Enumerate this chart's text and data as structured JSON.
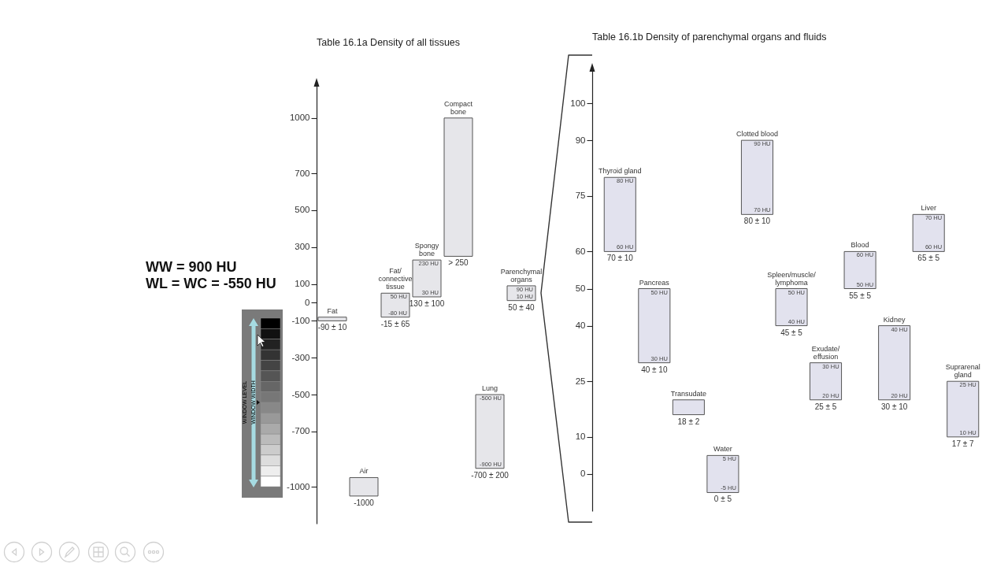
{
  "chart_data": [
    {
      "type": "bar",
      "title": "Table 16.1a Density of all tissues",
      "categories": [
        "Fat",
        "Air",
        "Fat/connective tissue",
        "Spongy bone",
        "Compact bone",
        "Lung",
        "Parenchymal organs"
      ],
      "base": [
        -100,
        -1050,
        -80,
        30,
        250,
        -900,
        10
      ],
      "values": [
        20,
        100,
        130,
        200,
        750,
        400,
        80
      ],
      "color": "#e6e6ea",
      "ylim": [
        -1200,
        1200
      ],
      "yticks": [
        -1000,
        -700,
        -500,
        -300,
        -100,
        0,
        100,
        300,
        500,
        700,
        1000
      ],
      "annotations": [
        "WW = 900 HU",
        "WL = WC = -550 HU",
        "WINDOW LEVEL",
        "WINDOW WIDTH",
        {
          "text": "50 HU",
          "x": "Fat/connective tissue",
          "y": 50
        },
        {
          "text": "-80 HU",
          "x": "Fat/connective tissue",
          "y": -80
        },
        {
          "text": "230 HU",
          "x": "Spongy bone",
          "y": 230
        },
        {
          "text": "30 HU",
          "x": "Spongy bone",
          "y": 30
        },
        {
          "text": "-500 HU",
          "x": "Lung",
          "y": -500
        },
        {
          "text": "-900 HU",
          "x": "Lung",
          "y": -900
        },
        {
          "text": "90 HU",
          "x": "Parenchymal organs",
          "y": 90
        },
        {
          "text": "10 HU",
          "x": "Parenchymal organs",
          "y": 10
        },
        {
          "text": "-90 ± 10",
          "x": "Fat",
          "y": -100
        },
        {
          "text": "-1000",
          "x": "Air",
          "y": -1050
        },
        {
          "text": "-15 ± 65",
          "x": "Fat/connective tissue",
          "y": -80
        },
        {
          "text": "130 ± 100",
          "x": "Spongy bone",
          "y": 30
        },
        {
          "text": "> 250",
          "x": "Compact bone",
          "y": 250
        },
        {
          "text": "-700 ± 200",
          "x": "Lung",
          "y": -900
        },
        {
          "text": "50 ± 40",
          "x": "Parenchymal organs",
          "y": 10
        }
      ]
    },
    {
      "type": "bar",
      "title": "Table 16.1b Density of parenchymal organs and fluids",
      "categories": [
        "Thyroid gland",
        "Pancreas",
        "Transudate",
        "Water",
        "Clotted blood",
        "Spleen/muscle/lymphoma",
        "Exudate/effusion",
        "Blood",
        "Kidney",
        "Liver",
        "Suprarenal gland"
      ],
      "base": [
        60,
        30,
        16,
        -5,
        70,
        40,
        20,
        50,
        20,
        60,
        10
      ],
      "values": [
        20,
        20,
        4,
        10,
        20,
        10,
        10,
        10,
        20,
        10,
        15
      ],
      "color": "#e2e2ee",
      "ylim": [
        -10,
        110
      ],
      "yticks": [
        0,
        10,
        25,
        40,
        50,
        60,
        75,
        90,
        100
      ],
      "annotations": [
        {
          "text": "80 HU",
          "x": "Thyroid gland",
          "y": 80
        },
        {
          "text": "60 HU",
          "x": "Thyroid gland",
          "y": 60
        },
        {
          "text": "50 HU",
          "x": "Pancreas",
          "y": 50
        },
        {
          "text": "30 HU",
          "x": "Pancreas",
          "y": 30
        },
        {
          "text": "5 HU",
          "x": "Water",
          "y": 5
        },
        {
          "text": "-5 HU",
          "x": "Water",
          "y": -5
        },
        {
          "text": "90 HU",
          "x": "Clotted blood",
          "y": 90
        },
        {
          "text": "70 HU",
          "x": "Clotted blood",
          "y": 70
        },
        {
          "text": "50 HU",
          "x": "Spleen/muscle/lymphoma",
          "y": 50
        },
        {
          "text": "40 HU",
          "x": "Spleen/muscle/lymphoma",
          "y": 40
        },
        {
          "text": "30 HU",
          "x": "Exudate/effusion",
          "y": 30
        },
        {
          "text": "20 HU",
          "x": "Exudate/effusion",
          "y": 20
        },
        {
          "text": "60 HU",
          "x": "Blood",
          "y": 60
        },
        {
          "text": "50 HU",
          "x": "Blood",
          "y": 50
        },
        {
          "text": "40 HU",
          "x": "Kidney",
          "y": 40
        },
        {
          "text": "20 HU",
          "x": "Kidney",
          "y": 20
        },
        {
          "text": "70 HU",
          "x": "Liver",
          "y": 70
        },
        {
          "text": "60 HU",
          "x": "Liver",
          "y": 60
        },
        {
          "text": "25 HU",
          "x": "Suprarenal gland",
          "y": 25
        },
        {
          "text": "10 HU",
          "x": "Suprarenal gland",
          "y": 10
        },
        {
          "text": "70 ± 10",
          "x": "Thyroid gland",
          "y": 60
        },
        {
          "text": "40 ± 10",
          "x": "Pancreas",
          "y": 30
        },
        {
          "text": "18 ± 2",
          "x": "Transudate",
          "y": 16
        },
        {
          "text": "0 ± 5",
          "x": "Water",
          "y": -5
        },
        {
          "text": "80 ± 10",
          "x": "Clotted blood",
          "y": 70
        },
        {
          "text": "45 ± 5",
          "x": "Spleen/muscle/lymphoma",
          "y": 40
        },
        {
          "text": "25 ± 5",
          "x": "Exudate/effusion",
          "y": 20
        },
        {
          "text": "55 ± 5",
          "x": "Blood",
          "y": 50
        },
        {
          "text": "30 ± 10",
          "x": "Kidney",
          "y": 20
        },
        {
          "text": "65 ± 5",
          "x": "Liver",
          "y": 60
        },
        {
          "text": "17 ± 7",
          "x": "Suprarenal gland",
          "y": 10
        }
      ]
    }
  ]
}
